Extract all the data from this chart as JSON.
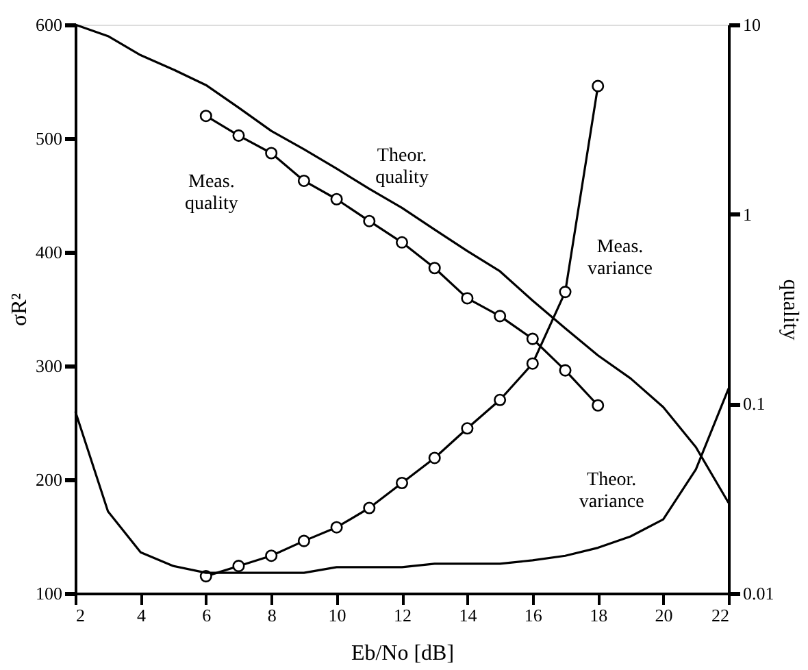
{
  "chart_data": {
    "type": "line",
    "xlabel": "Eb/No [dB]",
    "ylabel": "σR²",
    "y2label": "quality",
    "x": [
      2,
      3,
      4,
      5,
      6,
      7,
      8,
      9,
      10,
      11,
      12,
      13,
      14,
      15,
      16,
      17,
      18,
      19,
      20,
      21,
      22
    ],
    "series": [
      {
        "name": "Meas.\nvariance",
        "color": "#000000",
        "marker": "circle",
        "x": [
          6,
          7,
          8,
          9,
          10,
          11,
          12,
          13,
          14,
          15,
          16,
          17,
          18
        ],
        "values": [
          115,
          124,
          133,
          146,
          158,
          175,
          197,
          219,
          245,
          270,
          302,
          365,
          546
        ]
      },
      {
        "name": "Theor.\nvariance",
        "color": "#000000",
        "marker": "none",
        "values": [
          260,
          172,
          136,
          124,
          118,
          118,
          118,
          118,
          123,
          123,
          123,
          126,
          126,
          126,
          129,
          133,
          140,
          150,
          165,
          209,
          280
        ]
      },
      {
        "name": "Meas.\nquality",
        "color": "#000000",
        "marker": "circle",
        "axis": "y2",
        "x": [
          6,
          7,
          8,
          9,
          10,
          11,
          12,
          13,
          14,
          15,
          16,
          17,
          18
        ],
        "values": [
          3.3,
          2.6,
          2.1,
          1.5,
          1.2,
          0.92,
          0.71,
          0.52,
          0.36,
          0.29,
          0.22,
          0.15,
          0.098
        ]
      },
      {
        "name": "Theor.\nquality",
        "color": "#000000",
        "marker": "none",
        "axis": "y2",
        "values": [
          10,
          8.7,
          6.9,
          5.8,
          4.8,
          3.65,
          2.75,
          2.2,
          1.74,
          1.36,
          1.08,
          0.83,
          0.64,
          0.5,
          0.35,
          0.25,
          0.18,
          0.136,
          0.096,
          0.059,
          0.03
        ]
      }
    ],
    "xlim": [
      2,
      22
    ],
    "xticks": [
      2,
      4,
      6,
      8,
      10,
      12,
      14,
      16,
      18,
      20,
      22
    ],
    "ylim": [
      100,
      600
    ],
    "yticks": [
      100,
      200,
      300,
      400,
      500,
      600
    ],
    "y2lim": [
      0.01,
      10
    ],
    "y2ticks": [
      0.01,
      0.1,
      1,
      10
    ],
    "log": "y2",
    "grid": false,
    "line_style": "solid"
  }
}
